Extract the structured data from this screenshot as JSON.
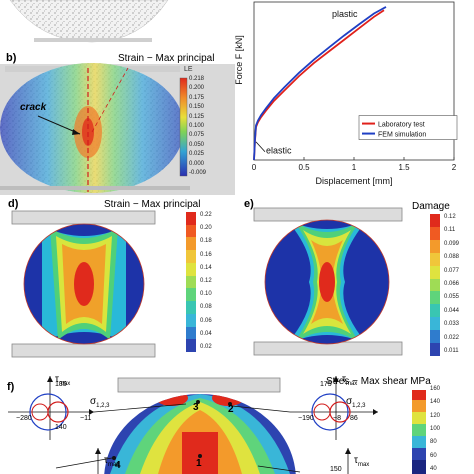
{
  "panel_b": {
    "label": "b)",
    "title": "Strain − Max principal",
    "crack_label": "crack",
    "colorbar_header": "LE",
    "colorbar_ticks": [
      "0.218",
      "0.200",
      "0.175",
      "0.150",
      "0.125",
      "0.100",
      "0.075",
      "0.050",
      "0.025",
      "0.000",
      "-0.009"
    ]
  },
  "panel_c": {
    "chart_data": {
      "type": "line",
      "xlabel": "Displacement [mm]",
      "ylabel": "Force F [kN]",
      "xlim": [
        0,
        2
      ],
      "x_ticks": [
        "0",
        "0.5",
        "1",
        "1.5",
        "2"
      ],
      "series": [
        {
          "name": "Laboratory test",
          "color": "#e0201b",
          "x": [
            0,
            0.01,
            0.02,
            0.04,
            0.07,
            0.12,
            0.2,
            0.3,
            0.45,
            0.6,
            0.75,
            0.9,
            1.05,
            1.2,
            1.3
          ],
          "y": [
            0,
            0.6,
            1.0,
            1.15,
            1.3,
            1.5,
            1.8,
            2.1,
            2.55,
            2.95,
            3.3,
            3.65,
            4.0,
            4.35,
            4.55
          ]
        },
        {
          "name": "FEM simulation",
          "color": "#1f3fc4",
          "x": [
            0,
            0.01,
            0.02,
            0.04,
            0.07,
            0.12,
            0.2,
            0.3,
            0.45,
            0.6,
            0.75,
            0.9,
            1.05,
            1.2,
            1.32
          ],
          "y": [
            0,
            0.65,
            1.05,
            1.2,
            1.36,
            1.57,
            1.88,
            2.2,
            2.65,
            3.05,
            3.42,
            3.78,
            4.12,
            4.45,
            4.65
          ]
        }
      ],
      "annotations": [
        "plastic",
        "elastic"
      ],
      "legend": "bottom-right"
    }
  },
  "panel_d": {
    "label": "d)",
    "title": "Strain − Max principal",
    "colorbar_ticks": [
      "0.22",
      "0.20",
      "0.18",
      "0.16",
      "0.14",
      "0.12",
      "0.10",
      "0.08",
      "0.06",
      "0.04",
      "0.02"
    ]
  },
  "panel_e": {
    "label": "e)",
    "title": "Damage",
    "colorbar_ticks": [
      "0.12",
      "0.11",
      "0.099",
      "0.088",
      "0.077",
      "0.066",
      "0.055",
      "0.044",
      "0.033",
      "0.022",
      "0.011"
    ]
  },
  "panel_f": {
    "label": "f)",
    "title": "Stres − Max shear MPa",
    "tau_label": "τ",
    "tau_sub": "max",
    "sigma_label": "σ",
    "sigma_sub": "1,2,3",
    "mohr_left": {
      "top": "135",
      "left": "−280",
      "mid": "140",
      "right": "−11"
    },
    "mohr_right": {
      "top": "175",
      "left": "−190",
      "mid": "−8",
      "right": "86"
    },
    "bottom_value": "150",
    "points": [
      "1",
      "2",
      "3",
      "4"
    ],
    "colorbar_ticks": [
      "160",
      "140",
      "120",
      "100",
      "80",
      "60",
      "40"
    ]
  }
}
